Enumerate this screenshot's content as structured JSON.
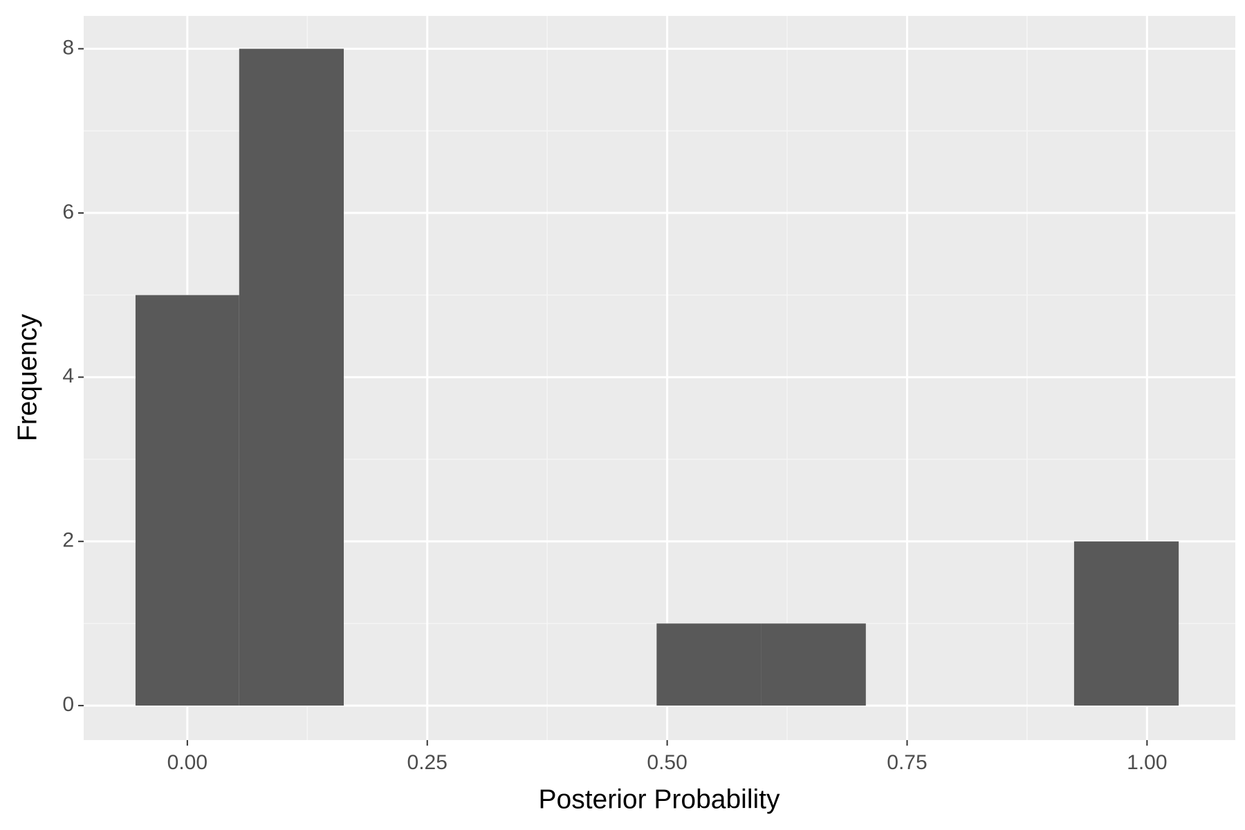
{
  "chart_data": {
    "type": "histogram",
    "x_label": "Posterior Probability",
    "y_label": "Frequency",
    "bins": [
      -0.054,
      0.054,
      0.163,
      0.272,
      0.38,
      0.489,
      0.598,
      0.707,
      0.815,
      0.924,
      1.033
    ],
    "counts": [
      5,
      8,
      0,
      0,
      0,
      1,
      1,
      0,
      0,
      2
    ],
    "color": "#595959",
    "xlim": [
      -0.108,
      1.092
    ],
    "ylim": [
      -0.42,
      8.4
    ],
    "xticks": [
      {
        "value": 0,
        "label": "0.00"
      },
      {
        "value": 0.25,
        "label": "0.25"
      },
      {
        "value": 0.5,
        "label": "0.50"
      },
      {
        "value": 0.75,
        "label": "0.75"
      },
      {
        "value": 1,
        "label": "1.00"
      }
    ],
    "yticks": [
      0,
      2,
      4,
      6,
      8
    ],
    "xminor": [
      0.125,
      0.375,
      0.625,
      0.875
    ],
    "yminor": [
      1,
      3,
      5,
      7
    ],
    "grid": true
  }
}
